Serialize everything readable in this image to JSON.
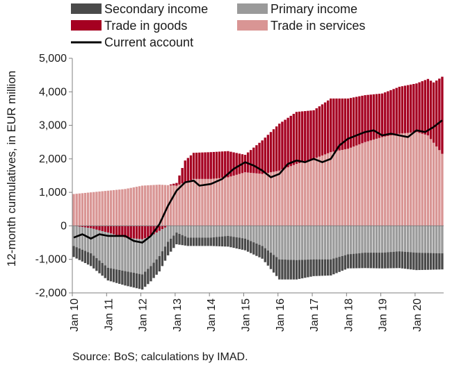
{
  "colors": {
    "secondary_income": "#4a4a4a",
    "primary_income": "#9a9a9a",
    "trade_goods": "#a50021",
    "trade_services": "#d99594",
    "current_account": "#000000",
    "axis": "#7f7f7f"
  },
  "chart_data": {
    "type": "bar",
    "subtype": "stacked monthly bars with line overlay",
    "xlabel": "",
    "ylabel": "12-month cumulatives, in EUR million",
    "ylim": [
      -2000,
      5000
    ],
    "yticks": [
      "5,000",
      "4,000",
      "3,000",
      "2,000",
      "1,000",
      "0",
      "-1,000",
      "-2,000"
    ],
    "ytick_values": [
      5000,
      4000,
      3000,
      2000,
      1000,
      0,
      -1000,
      -2000
    ],
    "xticks": [
      "Jan 10",
      "Jan 11",
      "Jan 12",
      "Jan 13",
      "Jan 14",
      "Jan 15",
      "Jan 16",
      "Jan 17",
      "Jan 18",
      "Jan 19",
      "Jan 20"
    ],
    "x_start": "2010-01",
    "x_end": "2020-10",
    "grid": false,
    "legend": "top",
    "source": "Source: BoS; calculations by IMAD.",
    "series": [
      {
        "name": "Secondary income",
        "kind": "bar",
        "anchors": [
          [
            0,
            -330
          ],
          [
            6,
            -380
          ],
          [
            12,
            -380
          ],
          [
            18,
            -430
          ],
          [
            24,
            -450
          ],
          [
            30,
            -460
          ],
          [
            36,
            -350
          ],
          [
            40,
            -250
          ],
          [
            48,
            -250
          ],
          [
            54,
            -320
          ],
          [
            60,
            -350
          ],
          [
            66,
            -380
          ],
          [
            72,
            -600
          ],
          [
            78,
            -580
          ],
          [
            84,
            -500
          ],
          [
            90,
            -480
          ],
          [
            96,
            -420
          ],
          [
            102,
            -460
          ],
          [
            108,
            -470
          ],
          [
            114,
            -500
          ],
          [
            120,
            -520
          ],
          [
            129,
            -480
          ]
        ]
      },
      {
        "name": "Primary income",
        "kind": "bar",
        "anchors": [
          [
            0,
            -600
          ],
          [
            6,
            -750
          ],
          [
            12,
            -1050
          ],
          [
            18,
            -1000
          ],
          [
            24,
            -1050
          ],
          [
            30,
            -750
          ],
          [
            36,
            -200
          ],
          [
            40,
            -350
          ],
          [
            48,
            -350
          ],
          [
            54,
            -300
          ],
          [
            60,
            -380
          ],
          [
            66,
            -600
          ],
          [
            72,
            -1000
          ],
          [
            78,
            -1020
          ],
          [
            84,
            -1000
          ],
          [
            90,
            -1000
          ],
          [
            96,
            -850
          ],
          [
            102,
            -800
          ],
          [
            108,
            -800
          ],
          [
            114,
            -760
          ],
          [
            120,
            -800
          ],
          [
            129,
            -820
          ]
        ]
      },
      {
        "name": "Trade in goods",
        "kind": "bar",
        "anchors": [
          [
            0,
            0
          ],
          [
            6,
            -70
          ],
          [
            12,
            -200
          ],
          [
            18,
            -350
          ],
          [
            24,
            -400
          ],
          [
            27,
            -300
          ],
          [
            30,
            -150
          ],
          [
            33,
            0
          ],
          [
            36,
            80
          ],
          [
            39,
            650
          ],
          [
            42,
            780
          ],
          [
            48,
            800
          ],
          [
            54,
            780
          ],
          [
            60,
            520
          ],
          [
            66,
            1000
          ],
          [
            72,
            1400
          ],
          [
            78,
            1550
          ],
          [
            84,
            1450
          ],
          [
            90,
            1600
          ],
          [
            96,
            1500
          ],
          [
            102,
            1400
          ],
          [
            108,
            1300
          ],
          [
            114,
            1400
          ],
          [
            120,
            1450
          ],
          [
            126,
            1800
          ],
          [
            129,
            2300
          ]
        ]
      },
      {
        "name": "Trade in services",
        "kind": "bar",
        "anchors": [
          [
            0,
            950
          ],
          [
            6,
            1000
          ],
          [
            12,
            1050
          ],
          [
            18,
            1100
          ],
          [
            24,
            1200
          ],
          [
            30,
            1230
          ],
          [
            36,
            1200
          ],
          [
            39,
            1300
          ],
          [
            42,
            1400
          ],
          [
            48,
            1400
          ],
          [
            54,
            1450
          ],
          [
            60,
            1600
          ],
          [
            66,
            1550
          ],
          [
            72,
            1650
          ],
          [
            78,
            1850
          ],
          [
            84,
            2000
          ],
          [
            90,
            2200
          ],
          [
            96,
            2300
          ],
          [
            102,
            2500
          ],
          [
            108,
            2650
          ],
          [
            114,
            2750
          ],
          [
            120,
            2800
          ],
          [
            124,
            2700
          ],
          [
            129,
            2150
          ]
        ]
      },
      {
        "name": "Current account",
        "kind": "line",
        "anchors": [
          [
            0,
            -350
          ],
          [
            3,
            -250
          ],
          [
            6,
            -380
          ],
          [
            9,
            -250
          ],
          [
            12,
            -300
          ],
          [
            15,
            -300
          ],
          [
            18,
            -300
          ],
          [
            21,
            -450
          ],
          [
            24,
            -500
          ],
          [
            27,
            -300
          ],
          [
            30,
            50
          ],
          [
            33,
            600
          ],
          [
            36,
            1050
          ],
          [
            39,
            1300
          ],
          [
            42,
            1350
          ],
          [
            44,
            1200
          ],
          [
            48,
            1250
          ],
          [
            52,
            1400
          ],
          [
            56,
            1700
          ],
          [
            60,
            1900
          ],
          [
            63,
            1800
          ],
          [
            66,
            1650
          ],
          [
            69,
            1450
          ],
          [
            72,
            1550
          ],
          [
            75,
            1850
          ],
          [
            78,
            1950
          ],
          [
            81,
            1900
          ],
          [
            84,
            2000
          ],
          [
            87,
            1900
          ],
          [
            90,
            2000
          ],
          [
            93,
            2400
          ],
          [
            96,
            2600
          ],
          [
            99,
            2700
          ],
          [
            102,
            2800
          ],
          [
            105,
            2850
          ],
          [
            108,
            2700
          ],
          [
            111,
            2750
          ],
          [
            114,
            2700
          ],
          [
            117,
            2650
          ],
          [
            120,
            2850
          ],
          [
            123,
            2800
          ],
          [
            126,
            2950
          ],
          [
            129,
            3150
          ]
        ]
      }
    ]
  }
}
